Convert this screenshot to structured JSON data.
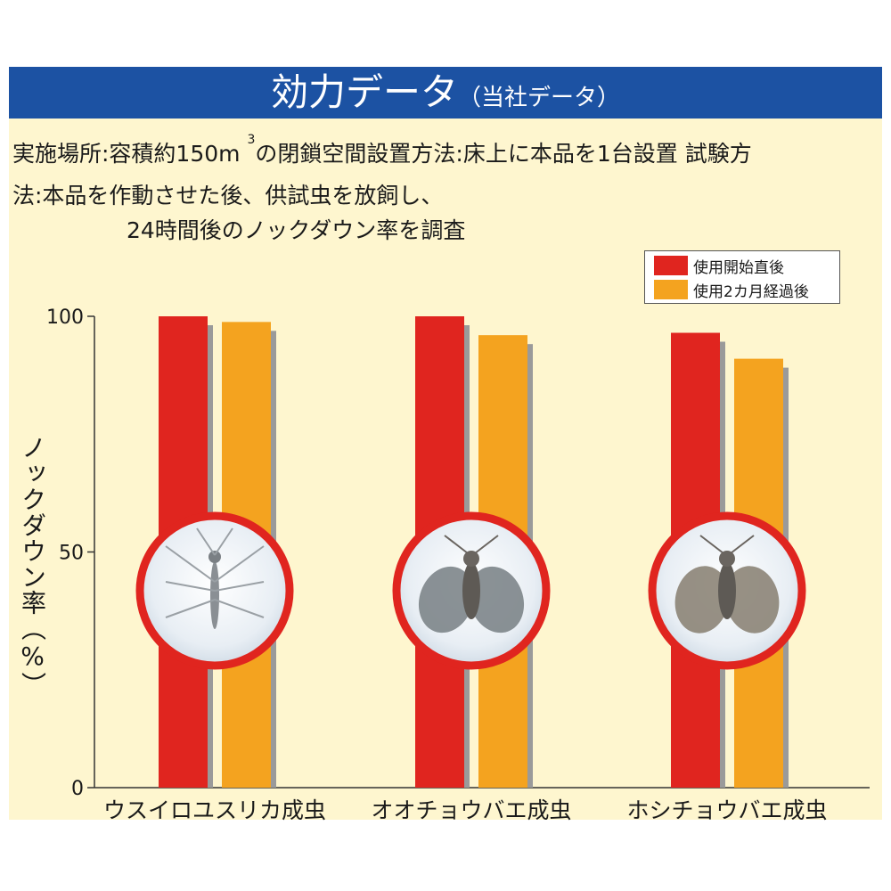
{
  "header": {
    "title": "効力データ",
    "subtitle": "（当社データ）"
  },
  "description": {
    "line1_pre": "実施場所:容積約150m",
    "line1_sup": "3",
    "line1_post": "の閉鎖空間設置方法:床上に本品を1台設置 試験方",
    "line2": "法:本品を作動させた後、供試虫を放飼し、",
    "line3": "24時間後のノックダウン率を調査"
  },
  "colors": {
    "banner": "#1c52a3",
    "panel": "#fef6cf",
    "series1": "#e0251f",
    "series2": "#f4a31f",
    "shadow": "#9a9a9a",
    "circle_ring": "#e0251f"
  },
  "chart_data": {
    "type": "bar",
    "ylabel": "ノックダウン率（%）",
    "ylim": [
      0,
      100
    ],
    "yticks": [
      "0",
      "50",
      "100"
    ],
    "categories": [
      "ウスイロユスリカ成虫",
      "オオチョウバエ成虫",
      "ホシチョウバエ成虫"
    ],
    "series": [
      {
        "name": "使用開始直後",
        "values": [
          100,
          100,
          96.5
        ]
      },
      {
        "name": "使用2カ月経過後",
        "values": [
          98.8,
          96,
          91
        ]
      }
    ],
    "insect_photos": [
      "mosquito-photo",
      "moth-fly-photo",
      "spotted-moth-fly-photo"
    ]
  }
}
